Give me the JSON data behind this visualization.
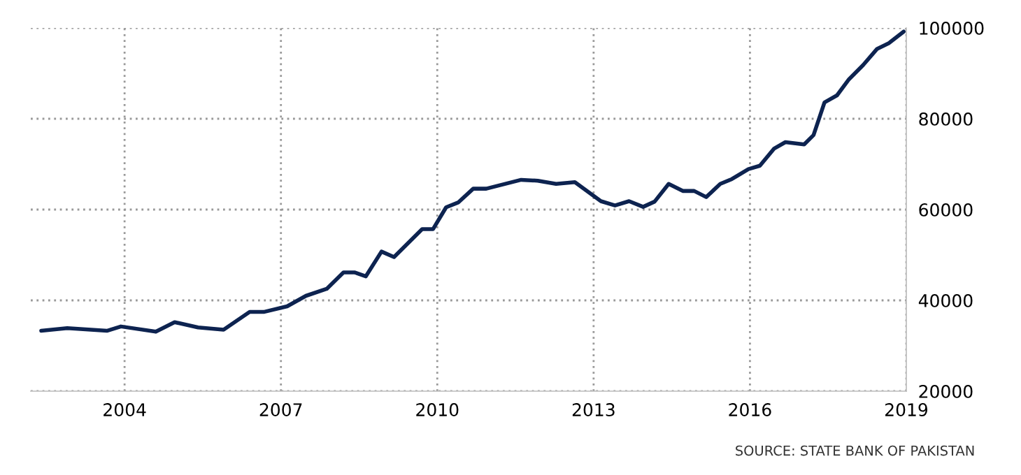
{
  "chart_data": {
    "type": "line",
    "x": [
      2002.4,
      2002.9,
      2003.66,
      2003.93,
      2004.6,
      2004.96,
      2005.41,
      2005.9,
      2006.4,
      2006.67,
      2007.12,
      2007.48,
      2007.88,
      2008.2,
      2008.42,
      2008.63,
      2008.93,
      2009.17,
      2009.71,
      2009.92,
      2010.17,
      2010.4,
      2010.69,
      2010.94,
      2011.61,
      2011.93,
      2012.28,
      2012.64,
      2013.14,
      2013.41,
      2013.68,
      2013.95,
      2014.17,
      2014.44,
      2014.71,
      2014.93,
      2015.16,
      2015.43,
      2015.65,
      2015.97,
      2016.19,
      2016.46,
      2016.68,
      2017.04,
      2017.22,
      2017.43,
      2017.67,
      2017.9,
      2018.17,
      2018.44,
      2018.66,
      2018.95
    ],
    "series": [
      {
        "color": "#0d2350",
        "values": [
          33300,
          33900,
          33300,
          34250,
          33100,
          35200,
          34050,
          33550,
          37450,
          37450,
          38700,
          41000,
          42550,
          46150,
          46150,
          45300,
          50750,
          49550,
          55700,
          55700,
          60500,
          61550,
          64600,
          64600,
          66550,
          66350,
          65650,
          66050,
          61850,
          60900,
          61850,
          60600,
          61750,
          65650,
          64100,
          64100,
          62750,
          65650,
          66700,
          68900,
          69650,
          73400,
          74850,
          74350,
          76400,
          83600,
          85150,
          88700,
          91800,
          95400,
          96600,
          99200
        ]
      }
    ],
    "xlim": [
      2002.2,
      2019.0
    ],
    "xticks": [
      2004,
      2007,
      2010,
      2013,
      2016,
      2019
    ],
    "ylim": [
      20000,
      100000
    ],
    "yticks": [
      20000,
      40000,
      60000,
      80000,
      100000
    ],
    "grid": true,
    "line_style": "solid",
    "annotations": [
      "SOURCE: STATE BANK OF PAKISTAN"
    ]
  }
}
